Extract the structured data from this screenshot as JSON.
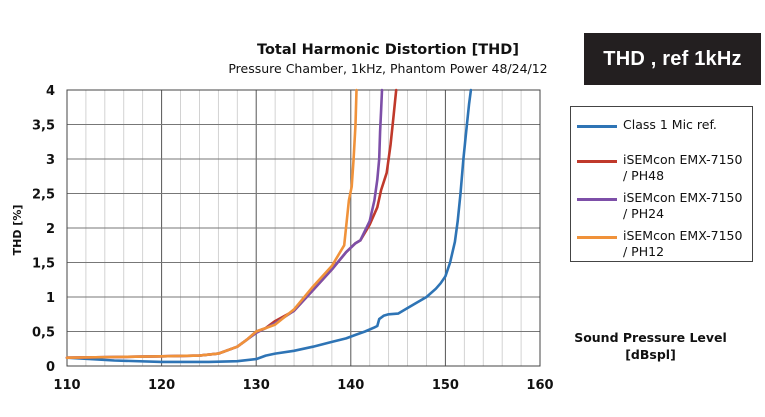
{
  "badge": {
    "text": "THD ,  ref 1kHz"
  },
  "chart_data": {
    "type": "line",
    "title": "Total Harmonic Distortion [THD]",
    "subtitle": "Pressure Chamber, 1kHz, Phantom Power 48/24/12",
    "xlabel_line1": "Sound Pressure Level",
    "xlabel_line2": "[dBspl]",
    "ylabel": "THD [%]",
    "xlim": [
      110,
      160
    ],
    "ylim": [
      0,
      4
    ],
    "x_ticks": [
      110,
      120,
      130,
      140,
      150,
      160
    ],
    "x_tick_labels": [
      "110",
      "120",
      "130",
      "140",
      "150",
      "160"
    ],
    "y_ticks": [
      0,
      0.5,
      1,
      1.5,
      2,
      2.5,
      3,
      3.5,
      4
    ],
    "y_tick_labels": [
      "0",
      "0,5",
      "1",
      "1,5",
      "2",
      "2,5",
      "3",
      "3,5",
      "4"
    ],
    "grid": true,
    "legend_position": "right",
    "series": [
      {
        "name": "Class 1 Mic ref.",
        "color": "#2e74b5",
        "x": [
          110,
          115,
          120,
          125,
          128,
          130,
          131,
          132,
          134,
          136,
          138,
          139.5,
          140.5,
          141.5,
          142.5,
          142.8,
          143,
          143.5,
          144,
          145,
          146,
          147,
          148,
          149,
          149.5,
          150,
          150.5,
          151,
          151.3,
          151.6,
          151.9,
          152.2,
          152.5,
          152.7
        ],
        "y": [
          0.12,
          0.08,
          0.06,
          0.06,
          0.07,
          0.1,
          0.15,
          0.18,
          0.22,
          0.28,
          0.35,
          0.4,
          0.45,
          0.5,
          0.56,
          0.58,
          0.68,
          0.73,
          0.75,
          0.76,
          0.84,
          0.92,
          1.0,
          1.12,
          1.2,
          1.3,
          1.5,
          1.8,
          2.1,
          2.5,
          3.0,
          3.4,
          3.8,
          4.0
        ]
      },
      {
        "name": "iSEMcon EMX-7150 / PH48",
        "color": "#c0392b",
        "x": [
          110,
          115,
          120,
          124,
          126,
          128,
          129,
          130,
          131,
          132,
          134,
          136,
          138,
          139.5,
          140.5,
          141,
          142,
          142.8,
          143.2,
          143.8,
          144.2,
          144.5,
          144.8
        ],
        "y": [
          0.12,
          0.13,
          0.14,
          0.15,
          0.18,
          0.28,
          0.38,
          0.5,
          0.55,
          0.65,
          0.8,
          1.1,
          1.4,
          1.65,
          1.78,
          1.82,
          2.05,
          2.3,
          2.55,
          2.8,
          3.2,
          3.6,
          4.0
        ]
      },
      {
        "name": "iSEMcon EMX-7150 / PH24",
        "color": "#7d4fa8",
        "x": [
          110,
          115,
          120,
          124,
          126,
          128,
          129,
          130,
          131,
          132,
          134,
          136,
          138,
          139.5,
          140.5,
          141,
          142,
          142.5,
          142.8,
          143,
          143.1,
          143.2,
          143.3
        ],
        "y": [
          0.12,
          0.13,
          0.14,
          0.15,
          0.18,
          0.28,
          0.38,
          0.48,
          0.55,
          0.62,
          0.8,
          1.1,
          1.4,
          1.65,
          1.78,
          1.82,
          2.1,
          2.4,
          2.7,
          3.0,
          3.4,
          3.7,
          4.0
        ]
      },
      {
        "name": "iSEMcon EMX-7150 / PH12",
        "color": "#f0923a",
        "x": [
          110,
          115,
          120,
          124,
          126,
          128,
          129,
          130,
          131,
          132,
          134,
          136,
          138,
          139.3,
          139.8,
          140.1,
          140.3,
          140.5,
          140.6
        ],
        "y": [
          0.12,
          0.13,
          0.14,
          0.15,
          0.18,
          0.28,
          0.38,
          0.5,
          0.55,
          0.6,
          0.82,
          1.15,
          1.45,
          1.75,
          2.4,
          2.6,
          3.0,
          3.5,
          4.0
        ]
      }
    ]
  }
}
